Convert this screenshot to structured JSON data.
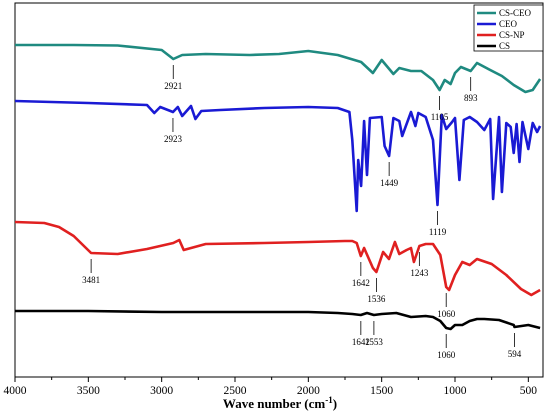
{
  "chart_data": {
    "type": "line",
    "xlabel": "Wave number (cm",
    "xlabel_sup": "-1",
    "xlabel_close": ")",
    "xlim": [
      4000,
      400
    ],
    "xticks": [
      "4000",
      "3500",
      "3000",
      "2500",
      "2000",
      "1500",
      "1000",
      "500"
    ],
    "xtick_values": [
      4000,
      3500,
      3000,
      2500,
      2000,
      1500,
      1000,
      500
    ],
    "legend_position": "top-right",
    "grid": false,
    "series": [
      {
        "name": "CS-CEO",
        "color": "#1f8a80",
        "points": [
          [
            4000,
            45
          ],
          [
            3600,
            45
          ],
          [
            3300,
            45.5
          ],
          [
            3000,
            50
          ],
          [
            2921,
            59
          ],
          [
            2860,
            55
          ],
          [
            2700,
            54
          ],
          [
            2400,
            55
          ],
          [
            2200,
            54
          ],
          [
            2000,
            51
          ],
          [
            1800,
            55
          ],
          [
            1640,
            62
          ],
          [
            1560,
            73
          ],
          [
            1500,
            60
          ],
          [
            1420,
            74
          ],
          [
            1380,
            68
          ],
          [
            1300,
            71
          ],
          [
            1230,
            71
          ],
          [
            1150,
            80
          ],
          [
            1105,
            90
          ],
          [
            1070,
            80
          ],
          [
            1030,
            84
          ],
          [
            1000,
            73
          ],
          [
            960,
            67
          ],
          [
            893,
            71
          ],
          [
            850,
            63
          ],
          [
            760,
            70
          ],
          [
            680,
            76
          ],
          [
            600,
            85
          ],
          [
            520,
            92
          ],
          [
            470,
            90
          ],
          [
            420,
            79
          ]
        ],
        "annotations": [
          {
            "x": 2921,
            "label": "2921"
          },
          {
            "x": 1105,
            "label": "1105"
          },
          {
            "x": 893,
            "label": "893"
          }
        ]
      },
      {
        "name": "CEO",
        "color": "#1a1ad4",
        "points": [
          [
            4000,
            101
          ],
          [
            3500,
            103
          ],
          [
            3100,
            105
          ],
          [
            3050,
            113
          ],
          [
            3010,
            107
          ],
          [
            2923,
            112
          ],
          [
            2890,
            107
          ],
          [
            2860,
            116
          ],
          [
            2800,
            106
          ],
          [
            2770,
            119
          ],
          [
            2730,
            111
          ],
          [
            2600,
            110
          ],
          [
            2300,
            108
          ],
          [
            2000,
            107
          ],
          [
            1800,
            108
          ],
          [
            1720,
            112
          ],
          [
            1700,
            140
          ],
          [
            1670,
            211
          ],
          [
            1660,
            160
          ],
          [
            1640,
            186
          ],
          [
            1620,
            121
          ],
          [
            1600,
            175
          ],
          [
            1580,
            118
          ],
          [
            1500,
            117
          ],
          [
            1480,
            146
          ],
          [
            1449,
            156
          ],
          [
            1420,
            118
          ],
          [
            1380,
            121
          ],
          [
            1360,
            136
          ],
          [
            1300,
            112
          ],
          [
            1270,
            126
          ],
          [
            1250,
            113
          ],
          [
            1200,
            117
          ],
          [
            1150,
            140
          ],
          [
            1119,
            205
          ],
          [
            1090,
            115
          ],
          [
            1060,
            129
          ],
          [
            1020,
            122
          ],
          [
            1000,
            118
          ],
          [
            970,
            180
          ],
          [
            940,
            120
          ],
          [
            900,
            117
          ],
          [
            850,
            122
          ],
          [
            800,
            130
          ],
          [
            760,
            119
          ],
          [
            740,
            199
          ],
          [
            700,
            117
          ],
          [
            680,
            192
          ],
          [
            650,
            123
          ],
          [
            620,
            127
          ],
          [
            600,
            153
          ],
          [
            580,
            124
          ],
          [
            560,
            162
          ],
          [
            540,
            122
          ],
          [
            500,
            149
          ],
          [
            470,
            123
          ],
          [
            440,
            132
          ],
          [
            420,
            126
          ]
        ],
        "annotations": [
          {
            "x": 2923,
            "label": "2923"
          },
          {
            "x": 1449,
            "label": "1449"
          },
          {
            "x": 1119,
            "label": "1119"
          }
        ]
      },
      {
        "name": "CS-NP",
        "color": "#e02020",
        "points": [
          [
            4000,
            222
          ],
          [
            3800,
            223
          ],
          [
            3700,
            227
          ],
          [
            3600,
            236
          ],
          [
            3481,
            253
          ],
          [
            3300,
            254
          ],
          [
            3100,
            249
          ],
          [
            2921,
            243
          ],
          [
            2880,
            240
          ],
          [
            2850,
            250
          ],
          [
            2700,
            244
          ],
          [
            2300,
            243
          ],
          [
            2000,
            242
          ],
          [
            1750,
            241
          ],
          [
            1700,
            241
          ],
          [
            1670,
            243
          ],
          [
            1642,
            256
          ],
          [
            1620,
            248
          ],
          [
            1560,
            268
          ],
          [
            1536,
            272
          ],
          [
            1490,
            252
          ],
          [
            1450,
            259
          ],
          [
            1410,
            242
          ],
          [
            1380,
            254
          ],
          [
            1330,
            250
          ],
          [
            1300,
            248
          ],
          [
            1280,
            262
          ],
          [
            1243,
            246
          ],
          [
            1200,
            244
          ],
          [
            1150,
            244
          ],
          [
            1100,
            255
          ],
          [
            1060,
            287
          ],
          [
            1040,
            290
          ],
          [
            1000,
            275
          ],
          [
            950,
            262
          ],
          [
            900,
            265
          ],
          [
            850,
            259
          ],
          [
            750,
            264
          ],
          [
            650,
            275
          ],
          [
            550,
            289
          ],
          [
            480,
            295
          ],
          [
            420,
            290
          ]
        ],
        "annotations": [
          {
            "x": 3481,
            "label": "3481"
          },
          {
            "x": 1642,
            "label": "1642"
          },
          {
            "x": 1536,
            "label": "1536"
          },
          {
            "x": 1243,
            "label": "1243"
          },
          {
            "x": 1060,
            "label": "1060"
          }
        ]
      },
      {
        "name": "CS",
        "color": "#000000",
        "points": [
          [
            4000,
            311
          ],
          [
            3500,
            311
          ],
          [
            3000,
            312
          ],
          [
            2500,
            312
          ],
          [
            2000,
            312
          ],
          [
            1800,
            313
          ],
          [
            1700,
            314
          ],
          [
            1642,
            315
          ],
          [
            1600,
            313
          ],
          [
            1553,
            315
          ],
          [
            1500,
            314
          ],
          [
            1400,
            313
          ],
          [
            1300,
            317
          ],
          [
            1200,
            316
          ],
          [
            1150,
            317
          ],
          [
            1100,
            321
          ],
          [
            1060,
            328
          ],
          [
            1030,
            329
          ],
          [
            1000,
            325
          ],
          [
            950,
            325
          ],
          [
            900,
            321
          ],
          [
            850,
            319
          ],
          [
            800,
            319
          ],
          [
            700,
            320
          ],
          [
            600,
            325
          ],
          [
            594,
            327
          ],
          [
            500,
            325
          ],
          [
            420,
            328
          ]
        ],
        "annotations": [
          {
            "x": 1642,
            "label": "1642"
          },
          {
            "x": 1553,
            "label": "1553"
          },
          {
            "x": 1060,
            "label": "1060"
          },
          {
            "x": 594,
            "label": "594"
          }
        ]
      }
    ],
    "legend": [
      "CS-CEO",
      "CEO",
      "CS-NP",
      "CS"
    ]
  }
}
